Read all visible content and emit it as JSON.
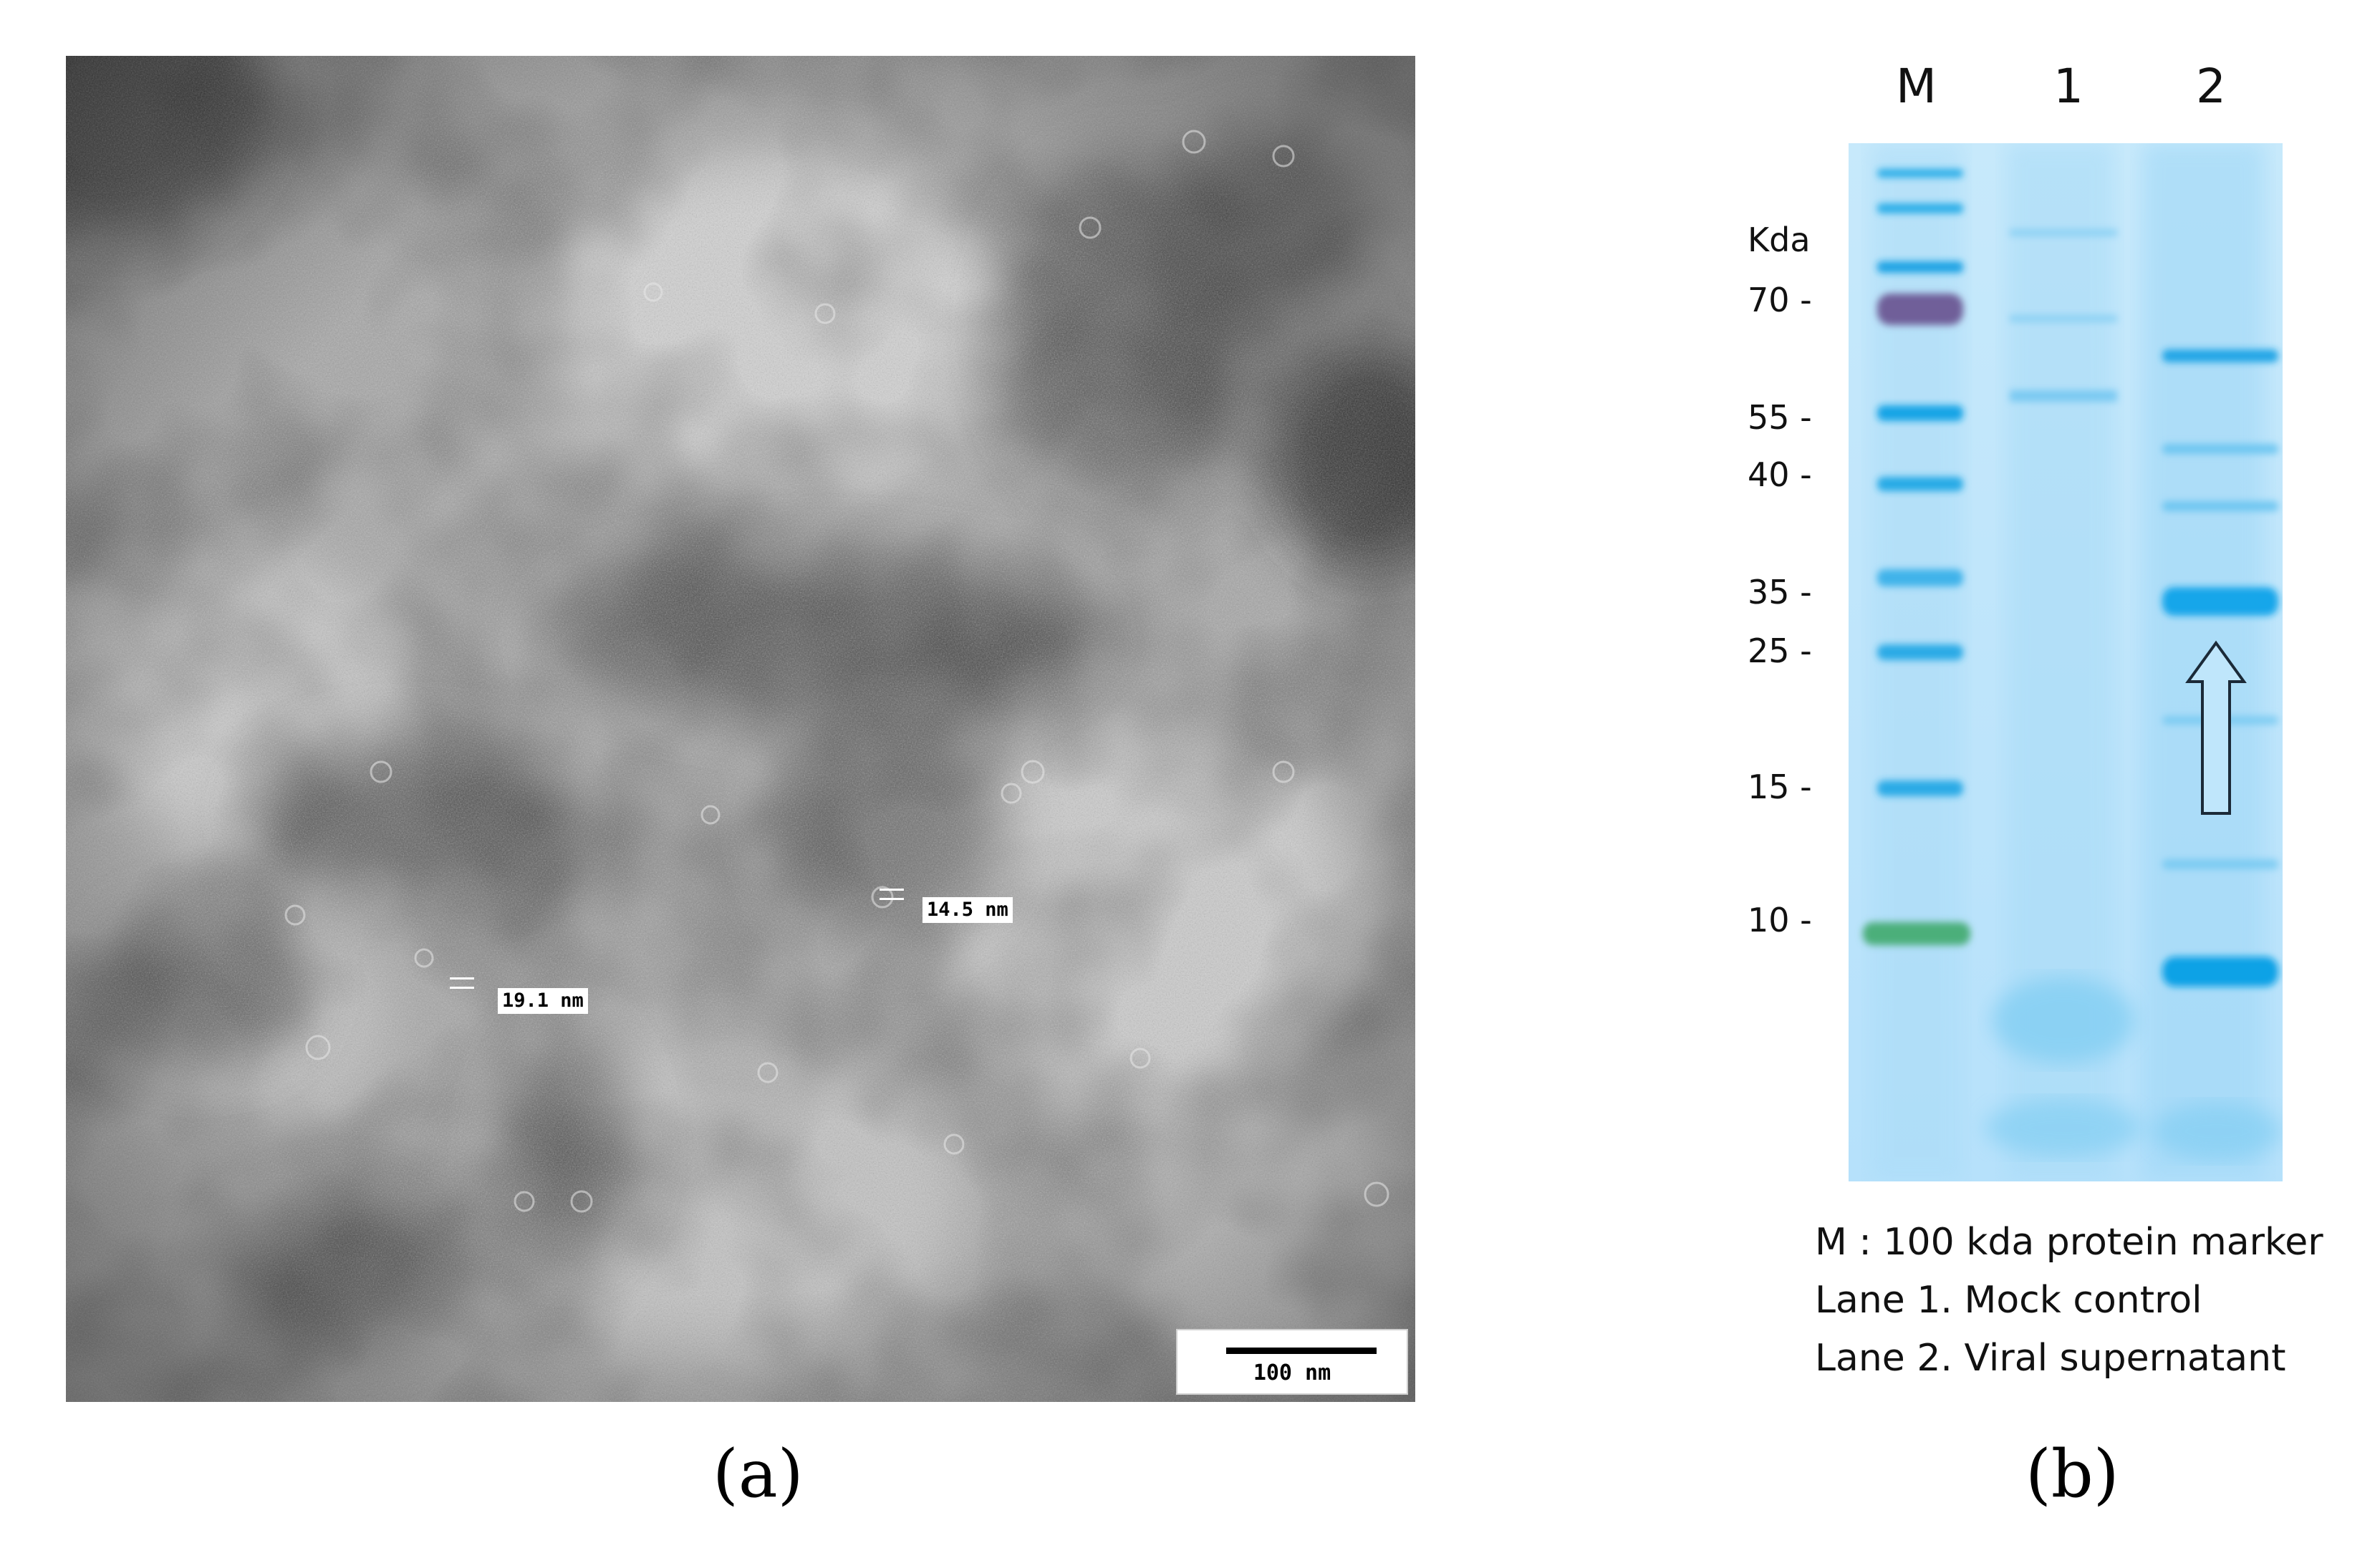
{
  "panel_a": {
    "label": "(a)",
    "measurements": [
      {
        "text": "19.1 nm"
      },
      {
        "text": "14.5 nm"
      }
    ],
    "scale_bar": {
      "text": "100 nm"
    }
  },
  "panel_b": {
    "label": "(b)",
    "lane_headers": [
      "M",
      "1",
      "2"
    ],
    "axis_unit": "Kda",
    "marker_labels": [
      "70 -",
      "55 -",
      "40 -",
      "35 -",
      "25 -",
      "15 -",
      "10 -"
    ],
    "legend": [
      "M : 100  kda protein marker",
      "Lane 1. Mock control",
      "Lane 2. Viral supernatant"
    ],
    "colors": {
      "gel_background": "#b9e3fb",
      "band": "#1aa8e6",
      "marker_70": "#6f5f99",
      "marker_10": "#4caf7a"
    }
  }
}
